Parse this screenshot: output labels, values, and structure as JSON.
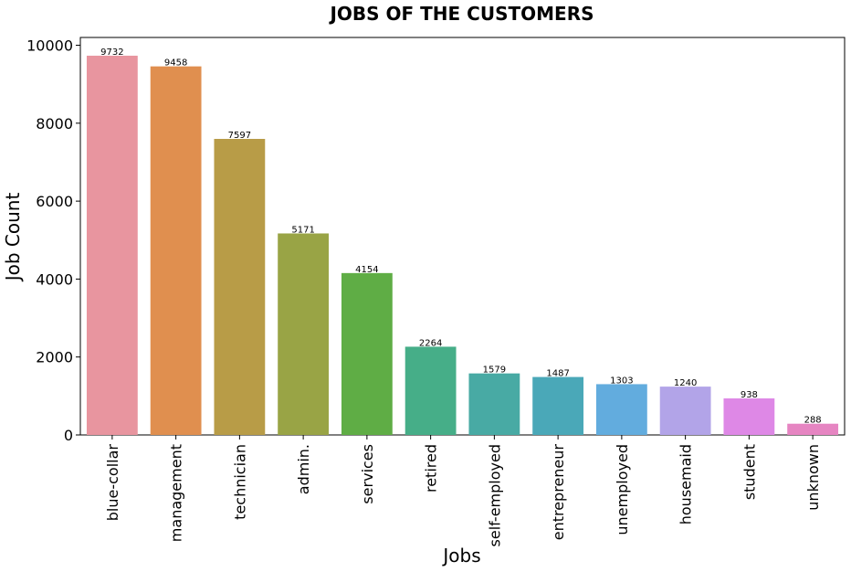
{
  "chart_data": {
    "type": "bar",
    "title": "JOBS OF THE CUSTOMERS",
    "xlabel": "Jobs",
    "ylabel": "Job Count",
    "categories": [
      "blue-collar",
      "management",
      "technician",
      "admin.",
      "services",
      "retired",
      "self-employed",
      "entrepreneur",
      "unemployed",
      "housemaid",
      "student",
      "unknown"
    ],
    "values": [
      9732,
      9458,
      7597,
      5171,
      4154,
      2264,
      1579,
      1487,
      1303,
      1240,
      938,
      288
    ],
    "data_labels": [
      "9732",
      "9458",
      "7597",
      "5171",
      "4154",
      "2264",
      "1579",
      "1487",
      "1303",
      "1240",
      "938",
      "288"
    ],
    "colors": [
      "#e8959f",
      "#e08f4f",
      "#b89c47",
      "#99a445",
      "#5fad45",
      "#46ae88",
      "#48aaa4",
      "#4aa8b8",
      "#62acde",
      "#b2a4e8",
      "#de88e6",
      "#e685c2"
    ],
    "ylim": [
      0,
      10200
    ],
    "yticks": [
      0,
      2000,
      4000,
      6000,
      8000,
      10000
    ],
    "ytick_labels": [
      "0",
      "2000",
      "4000",
      "6000",
      "8000",
      "10000"
    ],
    "grid": false,
    "legend": "none"
  }
}
